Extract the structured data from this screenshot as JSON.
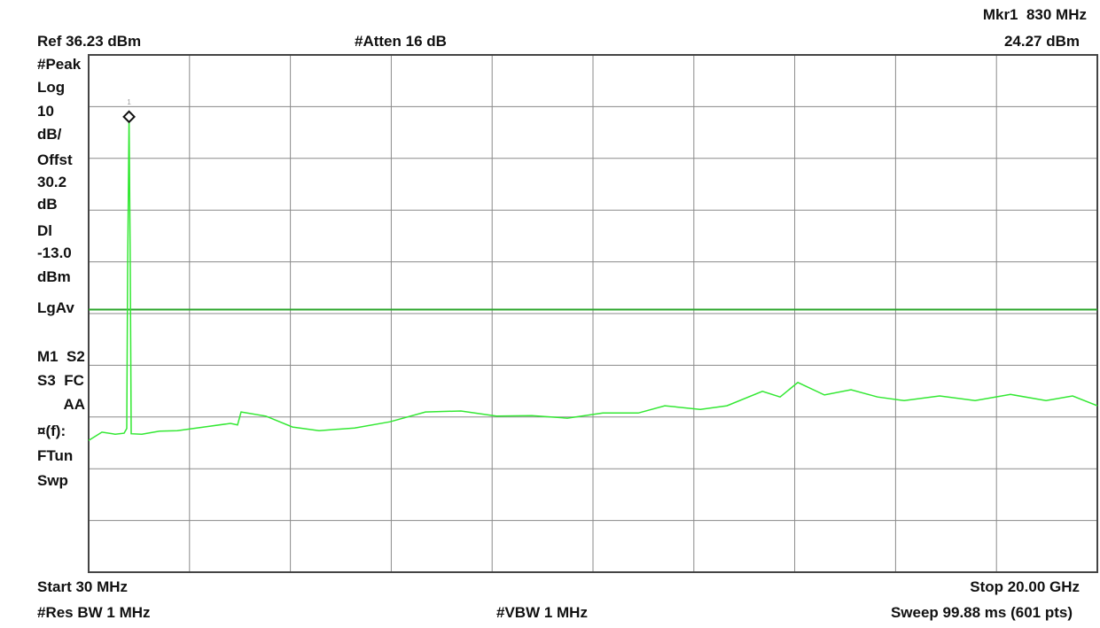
{
  "chart_data": {
    "type": "line",
    "header": {
      "marker": "Mkr1  830 MHz",
      "ref": "Ref 36.23 dBm",
      "atten": "#Atten 16 dB",
      "marker_level": "24.27 dBm"
    },
    "panel": [
      "#Peak",
      "Log",
      "10",
      "dB/",
      "Offst",
      "30.2",
      "dB",
      "Dl",
      "-13.0",
      "dBm",
      "LgAv",
      "M1  S2",
      "S3  FC",
      "AA",
      "¤(f):",
      "FTun",
      "Swp"
    ],
    "footer": {
      "start": "Start 30 MHz",
      "stop": "Stop 20.00 GHz",
      "rbw": "#Res BW 1 MHz",
      "vbw": "#VBW 1 MHz",
      "sweep": "Sweep 99.88 ms (601 pts)"
    },
    "xlim": [
      30,
      20000
    ],
    "ylim": [
      -63.77,
      36.23
    ],
    "xticks": [
      30,
      2027,
      4024,
      6021,
      8018,
      10015,
      12012,
      14009,
      16006,
      18003,
      20000
    ],
    "yticks": [
      36.23,
      26.23,
      16.23,
      6.23,
      -3.77,
      -13.77,
      -23.77,
      -33.77,
      -43.77,
      -53.77,
      -63.77
    ],
    "grid": true,
    "display_line": -13.0,
    "display_line_color": "#2aa52a",
    "marker_x": 830,
    "marker_y": 24.27,
    "marker_label": "1",
    "x": [
      30,
      293,
      556,
      732,
      785,
      802,
      830,
      855,
      872,
      1083,
      1434,
      1785,
      2311,
      2838,
      2978,
      3048,
      3540,
      4066,
      4593,
      5295,
      5997,
      6699,
      7401,
      8103,
      8805,
      9507,
      10209,
      10911,
      11437,
      12139,
      12666,
      13368,
      13719,
      14070,
      14596,
      15123,
      15649,
      16176,
      16878,
      17580,
      18282,
      18984,
      19510,
      20000
    ],
    "series": [
      {
        "color": "#33e833",
        "values": [
          -38.3,
          -36.7,
          -37.1,
          -36.9,
          -36.0,
          -5.4,
          24.27,
          -5.4,
          -37.0,
          -37.1,
          -36.5,
          -36.4,
          -35.7,
          -35.0,
          -35.3,
          -32.8,
          -33.6,
          -35.7,
          -36.4,
          -35.9,
          -34.7,
          -32.8,
          -32.6,
          -33.6,
          -33.5,
          -34.0,
          -33.0,
          -33.0,
          -31.6,
          -32.3,
          -31.6,
          -28.8,
          -29.9,
          -27.1,
          -29.5,
          -28.5,
          -29.9,
          -30.6,
          -29.7,
          -30.6,
          -29.4,
          -30.6,
          -29.7,
          -31.6
        ]
      }
    ]
  }
}
